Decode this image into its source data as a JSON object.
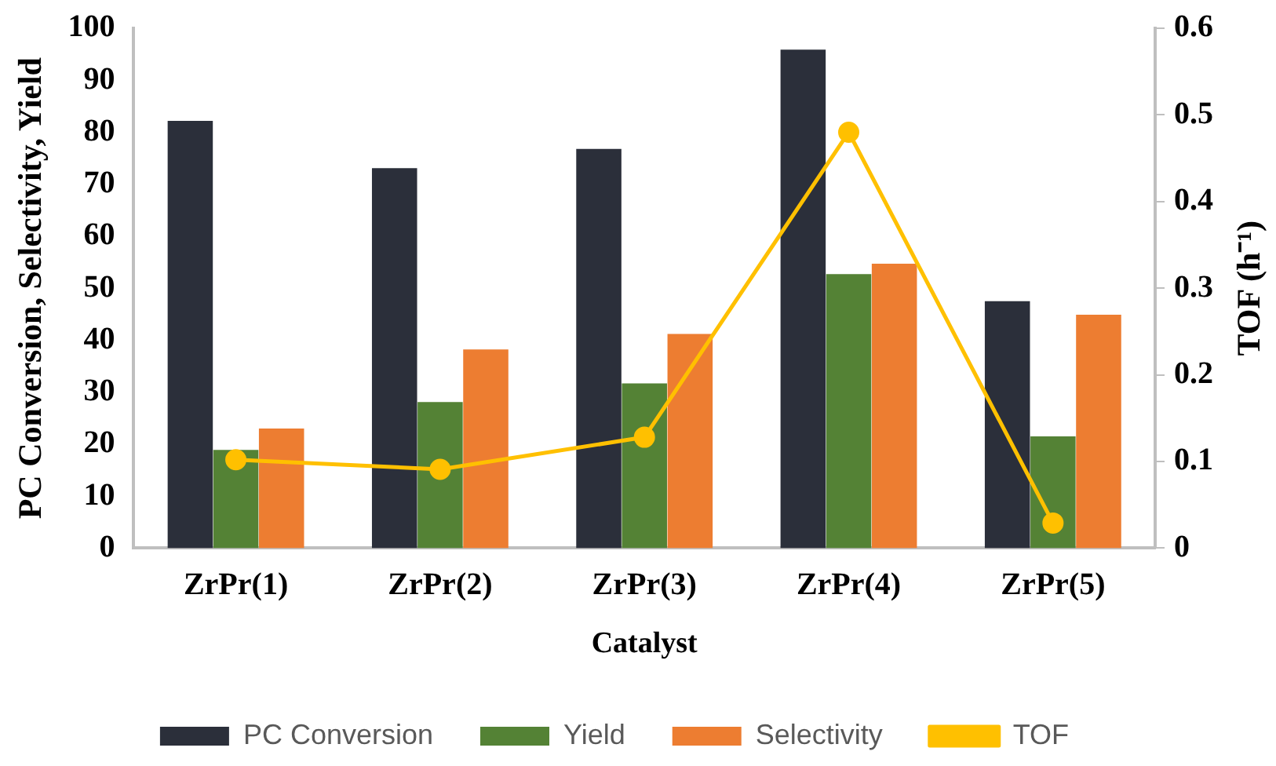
{
  "chart_data": {
    "type": "bar",
    "xlabel": "Catalyst",
    "ylabel": "PC Conversion, Selectivity, Yield",
    "y2label": "TOF (h⁻¹)",
    "categories": [
      "ZrPr(1)",
      "ZrPr(2)",
      "ZrPr(3)",
      "ZrPr(4)",
      "ZrPr(5)"
    ],
    "series": [
      {
        "name": "PC Conversion",
        "color": "#2b2f3a",
        "values": [
          82.2,
          73.1,
          76.8,
          95.9,
          47.5
        ]
      },
      {
        "name": "Yield",
        "color": "#548235",
        "values": [
          18.9,
          28.1,
          31.7,
          52.7,
          21.5
        ]
      },
      {
        "name": "Selectivity",
        "color": "#ed7d31",
        "values": [
          23.0,
          38.2,
          41.2,
          54.7,
          44.9
        ]
      },
      {
        "name": "TOF",
        "type": "line",
        "axis": "y2",
        "color": "#ffc000",
        "marker": "circle",
        "values": [
          0.102,
          0.091,
          0.128,
          0.48,
          0.029
        ]
      }
    ],
    "ylim": [
      0,
      100
    ],
    "yticks": [
      0,
      10,
      20,
      30,
      40,
      50,
      60,
      70,
      80,
      90,
      100
    ],
    "y2lim": [
      0,
      0.6
    ],
    "y2ticks": [
      0,
      0.1,
      0.2,
      0.3,
      0.4,
      0.5,
      0.6
    ],
    "grid": false,
    "legend": "bottom"
  }
}
